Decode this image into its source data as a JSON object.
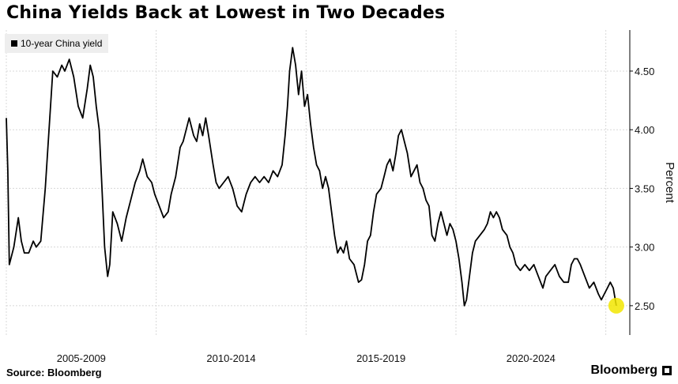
{
  "title": "China Yields Back at Lowest in Two Decades",
  "legend": {
    "label": "10-year China yield"
  },
  "footer": {
    "source": "Source: Bloomberg",
    "brand": "Bloomberg"
  },
  "colors": {
    "line": "#000000",
    "highlight": "#f2e600",
    "grid": "#d8d8d8",
    "legend_bg": "#eeeeee"
  },
  "chart_data": {
    "type": "line",
    "ylabel": "Percent",
    "ylim": [
      2.25,
      4.85
    ],
    "yticks": [
      2.5,
      3.0,
      3.5,
      4.0,
      4.5
    ],
    "ytick_labels": [
      "2.50",
      "3.00",
      "3.50",
      "4.00",
      "4.50"
    ],
    "x_range": [
      2004.0,
      2024.8
    ],
    "x_period_labels": [
      {
        "label": "2005-2009",
        "center": 2006.5
      },
      {
        "label": "2010-2014",
        "center": 2011.5
      },
      {
        "label": "2015-2019",
        "center": 2016.5
      },
      {
        "label": "2020-2024",
        "center": 2021.5
      }
    ],
    "grid": true,
    "legend_position": "top-left",
    "highlight_last_point": true,
    "series": [
      {
        "name": "10-year China yield",
        "points": [
          [
            2004.0,
            4.1
          ],
          [
            2004.05,
            3.65
          ],
          [
            2004.1,
            2.85
          ],
          [
            2004.25,
            3.0
          ],
          [
            2004.4,
            3.25
          ],
          [
            2004.5,
            3.05
          ],
          [
            2004.6,
            2.95
          ],
          [
            2004.75,
            2.95
          ],
          [
            2004.9,
            3.05
          ],
          [
            2005.0,
            3.0
          ],
          [
            2005.15,
            3.05
          ],
          [
            2005.3,
            3.5
          ],
          [
            2005.45,
            4.1
          ],
          [
            2005.55,
            4.5
          ],
          [
            2005.7,
            4.45
          ],
          [
            2005.85,
            4.55
          ],
          [
            2005.95,
            4.5
          ],
          [
            2006.1,
            4.6
          ],
          [
            2006.25,
            4.45
          ],
          [
            2006.4,
            4.2
          ],
          [
            2006.55,
            4.1
          ],
          [
            2006.7,
            4.35
          ],
          [
            2006.8,
            4.55
          ],
          [
            2006.9,
            4.45
          ],
          [
            2007.0,
            4.2
          ],
          [
            2007.1,
            4.0
          ],
          [
            2007.2,
            3.45
          ],
          [
            2007.28,
            3.0
          ],
          [
            2007.38,
            2.75
          ],
          [
            2007.45,
            2.85
          ],
          [
            2007.55,
            3.3
          ],
          [
            2007.7,
            3.2
          ],
          [
            2007.85,
            3.05
          ],
          [
            2008.0,
            3.25
          ],
          [
            2008.15,
            3.4
          ],
          [
            2008.3,
            3.55
          ],
          [
            2008.45,
            3.65
          ],
          [
            2008.55,
            3.75
          ],
          [
            2008.7,
            3.6
          ],
          [
            2008.85,
            3.55
          ],
          [
            2008.95,
            3.45
          ],
          [
            2009.1,
            3.35
          ],
          [
            2009.25,
            3.25
          ],
          [
            2009.4,
            3.3
          ],
          [
            2009.5,
            3.45
          ],
          [
            2009.65,
            3.6
          ],
          [
            2009.8,
            3.85
          ],
          [
            2009.9,
            3.9
          ],
          [
            2010.0,
            4.0
          ],
          [
            2010.1,
            4.1
          ],
          [
            2010.25,
            3.95
          ],
          [
            2010.35,
            3.9
          ],
          [
            2010.45,
            4.05
          ],
          [
            2010.55,
            3.95
          ],
          [
            2010.65,
            4.1
          ],
          [
            2010.75,
            3.95
          ],
          [
            2010.9,
            3.7
          ],
          [
            2011.0,
            3.55
          ],
          [
            2011.1,
            3.5
          ],
          [
            2011.25,
            3.55
          ],
          [
            2011.4,
            3.6
          ],
          [
            2011.55,
            3.5
          ],
          [
            2011.7,
            3.35
          ],
          [
            2011.85,
            3.3
          ],
          [
            2012.0,
            3.45
          ],
          [
            2012.15,
            3.55
          ],
          [
            2012.3,
            3.6
          ],
          [
            2012.45,
            3.55
          ],
          [
            2012.6,
            3.6
          ],
          [
            2012.75,
            3.55
          ],
          [
            2012.9,
            3.65
          ],
          [
            2013.05,
            3.6
          ],
          [
            2013.2,
            3.7
          ],
          [
            2013.3,
            3.95
          ],
          [
            2013.38,
            4.2
          ],
          [
            2013.45,
            4.5
          ],
          [
            2013.55,
            4.7
          ],
          [
            2013.65,
            4.55
          ],
          [
            2013.75,
            4.3
          ],
          [
            2013.85,
            4.5
          ],
          [
            2013.95,
            4.2
          ],
          [
            2014.05,
            4.3
          ],
          [
            2014.15,
            4.05
          ],
          [
            2014.25,
            3.85
          ],
          [
            2014.35,
            3.7
          ],
          [
            2014.45,
            3.65
          ],
          [
            2014.55,
            3.5
          ],
          [
            2014.65,
            3.6
          ],
          [
            2014.75,
            3.5
          ],
          [
            2014.85,
            3.3
          ],
          [
            2014.95,
            3.1
          ],
          [
            2015.05,
            2.95
          ],
          [
            2015.15,
            3.0
          ],
          [
            2015.25,
            2.95
          ],
          [
            2015.35,
            3.05
          ],
          [
            2015.45,
            2.9
          ],
          [
            2015.6,
            2.85
          ],
          [
            2015.75,
            2.7
          ],
          [
            2015.85,
            2.72
          ],
          [
            2015.95,
            2.85
          ],
          [
            2016.05,
            3.05
          ],
          [
            2016.15,
            3.1
          ],
          [
            2016.25,
            3.3
          ],
          [
            2016.35,
            3.45
          ],
          [
            2016.5,
            3.5
          ],
          [
            2016.6,
            3.6
          ],
          [
            2016.7,
            3.7
          ],
          [
            2016.8,
            3.75
          ],
          [
            2016.9,
            3.65
          ],
          [
            2017.0,
            3.8
          ],
          [
            2017.08,
            3.95
          ],
          [
            2017.18,
            4.0
          ],
          [
            2017.28,
            3.9
          ],
          [
            2017.38,
            3.8
          ],
          [
            2017.5,
            3.6
          ],
          [
            2017.6,
            3.65
          ],
          [
            2017.7,
            3.7
          ],
          [
            2017.8,
            3.55
          ],
          [
            2017.9,
            3.5
          ],
          [
            2018.0,
            3.4
          ],
          [
            2018.1,
            3.35
          ],
          [
            2018.2,
            3.1
          ],
          [
            2018.3,
            3.05
          ],
          [
            2018.4,
            3.2
          ],
          [
            2018.5,
            3.3
          ],
          [
            2018.6,
            3.2
          ],
          [
            2018.7,
            3.1
          ],
          [
            2018.8,
            3.2
          ],
          [
            2018.9,
            3.15
          ],
          [
            2019.0,
            3.05
          ],
          [
            2019.1,
            2.9
          ],
          [
            2019.2,
            2.7
          ],
          [
            2019.28,
            2.5
          ],
          [
            2019.35,
            2.55
          ],
          [
            2019.45,
            2.75
          ],
          [
            2019.55,
            2.95
          ],
          [
            2019.65,
            3.05
          ],
          [
            2019.8,
            3.1
          ],
          [
            2019.95,
            3.15
          ],
          [
            2020.05,
            3.2
          ],
          [
            2020.15,
            3.3
          ],
          [
            2020.25,
            3.25
          ],
          [
            2020.35,
            3.3
          ],
          [
            2020.45,
            3.25
          ],
          [
            2020.55,
            3.15
          ],
          [
            2020.7,
            3.1
          ],
          [
            2020.8,
            3.0
          ],
          [
            2020.9,
            2.95
          ],
          [
            2021.0,
            2.85
          ],
          [
            2021.15,
            2.8
          ],
          [
            2021.3,
            2.85
          ],
          [
            2021.45,
            2.8
          ],
          [
            2021.6,
            2.85
          ],
          [
            2021.75,
            2.75
          ],
          [
            2021.9,
            2.65
          ],
          [
            2022.0,
            2.75
          ],
          [
            2022.15,
            2.8
          ],
          [
            2022.3,
            2.85
          ],
          [
            2022.45,
            2.75
          ],
          [
            2022.6,
            2.7
          ],
          [
            2022.75,
            2.7
          ],
          [
            2022.85,
            2.85
          ],
          [
            2022.95,
            2.9
          ],
          [
            2023.05,
            2.9
          ],
          [
            2023.15,
            2.85
          ],
          [
            2023.3,
            2.75
          ],
          [
            2023.45,
            2.65
          ],
          [
            2023.6,
            2.7
          ],
          [
            2023.75,
            2.6
          ],
          [
            2023.85,
            2.55
          ],
          [
            2023.95,
            2.6
          ],
          [
            2024.05,
            2.65
          ],
          [
            2024.15,
            2.7
          ],
          [
            2024.25,
            2.65
          ],
          [
            2024.35,
            2.5
          ]
        ]
      }
    ]
  }
}
